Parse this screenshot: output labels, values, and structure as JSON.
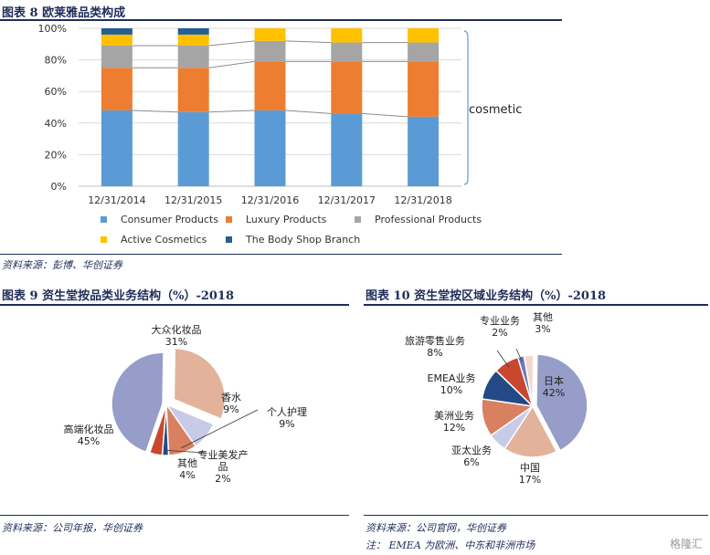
{
  "fig8": {
    "title": "图表 8   欧莱雅品类构成",
    "source": "资料来源：彭博、华创证券"
  },
  "fig9": {
    "title": "图表 9   资生堂按品类业务结构（%）-2018",
    "source": "资料来源：公司年报，华创证券"
  },
  "fig10": {
    "title": "图表 10   资生堂按区域业务结构（%）-2018",
    "source": "资料来源：公司官网，华创证券",
    "note": "注：  EMEA 为欧洲、中东和非洲市场"
  },
  "watermark": "格隆汇",
  "chart_data": [
    {
      "type": "bar",
      "stacked": true,
      "categories": [
        "12/31/2014",
        "12/31/2015",
        "12/31/2016",
        "12/31/2017",
        "12/31/2018"
      ],
      "yticks": [
        "0%",
        "20%",
        "40%",
        "60%",
        "80%",
        "100%"
      ],
      "ylim": [
        0,
        100
      ],
      "annotation": "cosmetic",
      "legend_position": "bottom",
      "series": [
        {
          "name": "Consumer Products",
          "color": "#5b9bd5",
          "values": [
            48,
            47,
            48,
            46,
            44
          ]
        },
        {
          "name": "Luxury Products",
          "color": "#ed7d31",
          "values": [
            27,
            28,
            31,
            33,
            35
          ]
        },
        {
          "name": "Professional Products",
          "color": "#a5a5a5",
          "values": [
            14,
            14,
            13,
            12,
            12
          ]
        },
        {
          "name": "Active Cosmetics",
          "color": "#ffc000",
          "values": [
            7,
            7,
            8,
            9,
            9
          ]
        },
        {
          "name": "The Body Shop Branch",
          "color": "#255e91",
          "values": [
            4,
            4,
            0,
            0,
            0
          ]
        }
      ]
    },
    {
      "type": "pie",
      "slices": [
        {
          "name": "大众化妆品",
          "value": 31,
          "label": "31%",
          "color": "#e3b29b"
        },
        {
          "name": "香水",
          "value": 9,
          "label": "9%",
          "color": "#c7cbe6"
        },
        {
          "name": "个人护理",
          "value": 9,
          "label": "9%",
          "color": "#d98061"
        },
        {
          "name": "专业美发产品",
          "value": 2,
          "label": "2%",
          "color": "#234a85"
        },
        {
          "name": "其他",
          "value": 4,
          "label": "4%",
          "color": "#c8472e"
        },
        {
          "name": "高端化妆品",
          "value": 45,
          "label": "45%",
          "color": "#959dc8"
        }
      ]
    },
    {
      "type": "pie",
      "slices": [
        {
          "name": "日本",
          "value": 42,
          "label": "42%",
          "color": "#959dc8"
        },
        {
          "name": "中国",
          "value": 17,
          "label": "17%",
          "color": "#e3b29b"
        },
        {
          "name": "亚太业务",
          "value": 6,
          "label": "6%",
          "color": "#c7cbe6"
        },
        {
          "name": "美洲业务",
          "value": 12,
          "label": "12%",
          "color": "#d98061"
        },
        {
          "name": "EMEA业务",
          "value": 10,
          "label": "10%",
          "color": "#234a85"
        },
        {
          "name": "旅游零售业务",
          "value": 8,
          "label": "8%",
          "color": "#c8472e"
        },
        {
          "name": "专业业务",
          "value": 2,
          "label": "2%",
          "color": "#6f78b8"
        },
        {
          "name": "其他",
          "value": 3,
          "label": "3%",
          "color": "#f2d9cc"
        }
      ]
    }
  ]
}
